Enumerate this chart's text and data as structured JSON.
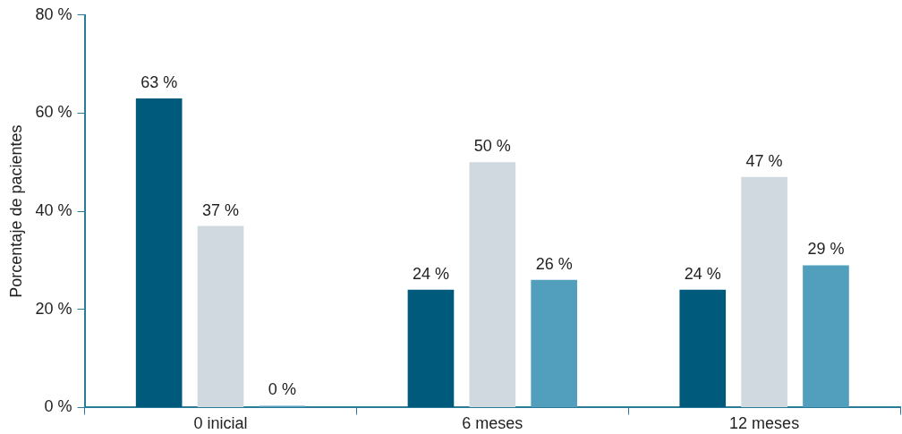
{
  "chart_data": {
    "type": "bar",
    "ylabel": "Porcentaje de pacientes",
    "categories": [
      "0 inicial",
      "6 meses",
      "12 meses"
    ],
    "series": [
      {
        "color": "#005a7c",
        "values": [
          63,
          24,
          24
        ],
        "value_labels": [
          "63 %",
          "24 %",
          "24 %"
        ]
      },
      {
        "color": "#d0d9e0",
        "values": [
          37,
          50,
          47
        ],
        "value_labels": [
          "37 %",
          "50 %",
          "47 %"
        ]
      },
      {
        "color": "#529fbd",
        "values": [
          0,
          26,
          29
        ],
        "value_labels": [
          "0 %",
          "26 %",
          "29 %"
        ]
      }
    ],
    "ylim": [
      0,
      80
    ],
    "yticks": [
      {
        "value": 0,
        "label": "0 %"
      },
      {
        "value": 20,
        "label": "20 %"
      },
      {
        "value": 40,
        "label": "40 %"
      },
      {
        "value": 60,
        "label": "60 %"
      },
      {
        "value": 80,
        "label": "80 %"
      }
    ],
    "grid": false,
    "legend": false
  }
}
